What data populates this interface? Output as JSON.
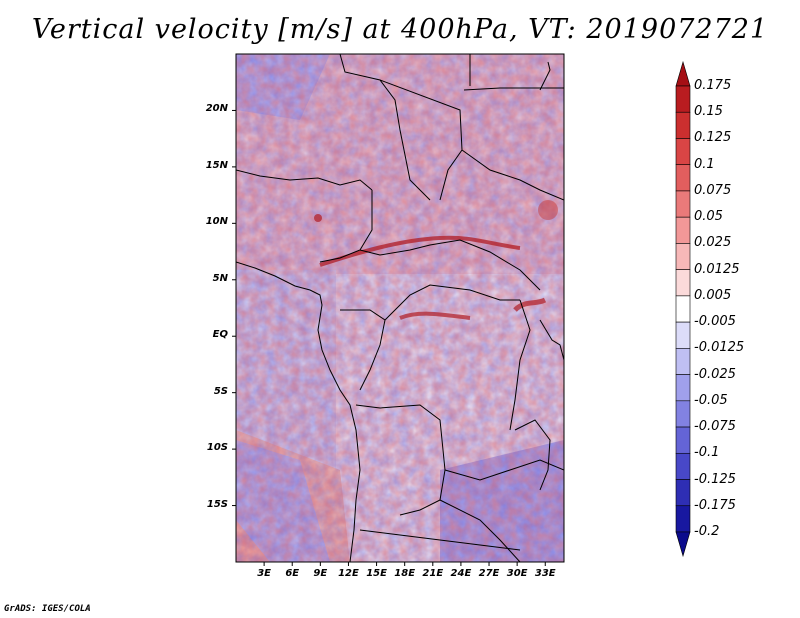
{
  "title": "Vertical velocity [m/s] at 400hPa, VT: 2019072721",
  "credit": "GrADS: IGES/COLA",
  "map": {
    "variable": "Vertical velocity",
    "units": "m/s",
    "level": "400hPa",
    "valid_time": "2019072721",
    "lat_ticks": [
      "20N",
      "15N",
      "10N",
      "5N",
      "EQ",
      "5S",
      "10S",
      "15S"
    ],
    "lat_values": [
      20,
      15,
      10,
      5,
      0,
      -5,
      -10,
      -15
    ],
    "lon_ticks": [
      "3E",
      "6E",
      "9E",
      "12E",
      "15E",
      "18E",
      "21E",
      "24E",
      "27E",
      "30E",
      "33E"
    ],
    "lon_values": [
      3,
      6,
      9,
      12,
      15,
      18,
      21,
      24,
      27,
      30,
      33
    ],
    "lat_range": [
      -20,
      25
    ],
    "lon_range": [
      0,
      35
    ]
  },
  "colorbar": {
    "labels": [
      "0.175",
      "0.15",
      "0.125",
      "0.1",
      "0.075",
      "0.05",
      "0.025",
      "0.0125",
      "0.005",
      "-0.005",
      "-0.0125",
      "-0.025",
      "-0.05",
      "-0.075",
      "-0.1",
      "-0.125",
      "-0.175",
      "-0.2"
    ],
    "colors": [
      "#a50f15",
      "#b91c20",
      "#cb2f2f",
      "#d94545",
      "#e25e5e",
      "#ea7a7a",
      "#f29898",
      "#f7b8b8",
      "#fbdada",
      "#ffffff",
      "#dcdcf9",
      "#bfbff3",
      "#a0a0ec",
      "#8282e2",
      "#6464d6",
      "#4848c8",
      "#2e2eb4",
      "#1818a0",
      "#0b0b8c"
    ]
  }
}
